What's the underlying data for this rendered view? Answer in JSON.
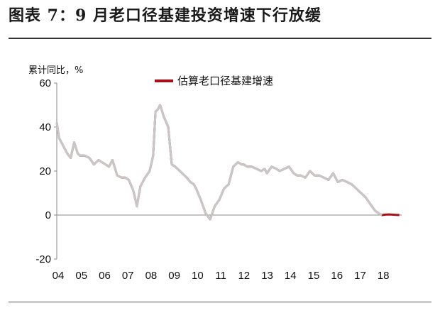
{
  "figure": {
    "title": "图表 7：9 月老口径基建投资增速下行放缓"
  },
  "chart_data": {
    "type": "line",
    "ylabel": "累计同比，%",
    "ylim": [
      -20,
      60
    ],
    "yticks": [
      -20,
      0,
      20,
      40,
      60
    ],
    "xticks": [
      "04",
      "05",
      "06",
      "07",
      "08",
      "09",
      "10",
      "11",
      "12",
      "13",
      "14",
      "15",
      "16",
      "17",
      "18"
    ],
    "grid": false,
    "legend_position": "top-center",
    "colors": {
      "estimated": "#a50f15",
      "reference": "#c8c8c8"
    },
    "series": [
      {
        "name": "估算老口径基建增速",
        "x": [
          2004.0,
          2004.1,
          2004.25,
          2004.45,
          2004.6,
          2004.75,
          2004.9,
          2005.0,
          2005.2,
          2005.4,
          2005.6,
          2005.8,
          2005.95,
          2006.1,
          2006.25,
          2006.4,
          2006.6,
          2006.8,
          2006.95,
          2007.1,
          2007.3,
          2007.45,
          2007.6,
          2007.8,
          2008.0,
          2008.15,
          2008.25,
          2008.35,
          2008.45,
          2008.6,
          2008.8,
          2008.95,
          2009.1,
          2009.2,
          2009.3,
          2009.4,
          2009.5,
          2009.6,
          2009.75,
          2009.9,
          2010.0,
          2010.2,
          2010.4,
          2010.6,
          2010.8,
          2011.0,
          2011.2,
          2011.4,
          2011.6,
          2011.8,
          2011.95,
          2012.05,
          2012.2,
          2012.4,
          2012.6,
          2012.8,
          2012.95,
          2013.05,
          2013.25,
          2013.45,
          2013.6,
          2013.8,
          2014.0,
          2014.2,
          2014.35,
          2014.5,
          2014.7,
          2014.9,
          2015.1,
          2015.3,
          2015.5,
          2015.7,
          2015.9,
          2016.1,
          2016.3,
          2016.5,
          2016.7,
          2016.9,
          2017.1,
          2017.3,
          2017.5,
          2017.7,
          2017.9,
          2018.0,
          2018.15,
          2018.3,
          2018.45,
          2018.6,
          2018.75
        ],
        "values": [
          42,
          35,
          32,
          28,
          26,
          33,
          28,
          27,
          27,
          26,
          23,
          25,
          24,
          23,
          22,
          25,
          18,
          17,
          17,
          16,
          11,
          4,
          13,
          17,
          20,
          27,
          47,
          48,
          50,
          45,
          40,
          23,
          22,
          21,
          20,
          19,
          18,
          17,
          15,
          14,
          12,
          7,
          1,
          -2,
          4,
          7,
          12,
          14,
          22,
          24,
          23,
          23,
          22,
          22,
          21,
          20,
          21,
          19,
          22,
          21,
          20,
          21,
          22,
          19,
          18,
          18,
          17,
          20,
          18,
          18,
          17,
          16,
          19,
          15,
          16,
          15,
          14,
          12,
          10,
          8,
          5,
          2,
          0.5,
          0,
          0.2,
          0.3,
          0.2,
          0.1,
          0
        ]
      }
    ]
  }
}
